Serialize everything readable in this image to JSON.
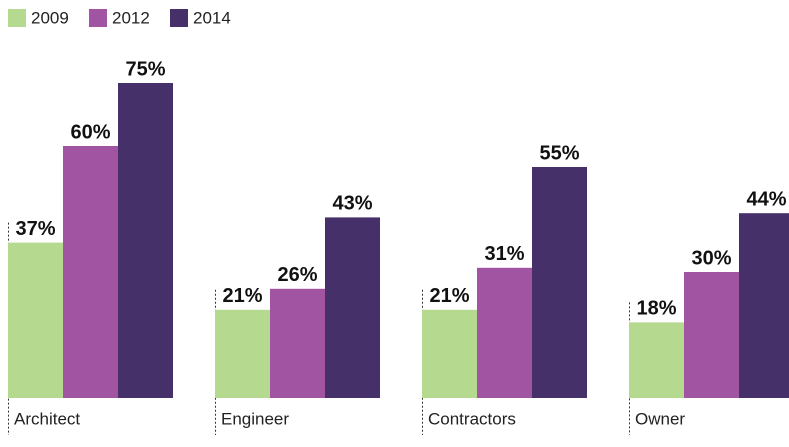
{
  "chart_data": {
    "type": "bar",
    "categories": [
      "Architect",
      "Engineer",
      "Contractors",
      "Owner"
    ],
    "series": [
      {
        "name": "2009",
        "color": "#b5d98f",
        "values": [
          37,
          21,
          21,
          18
        ],
        "value_labels": [
          "37%",
          "21%",
          "21%",
          "18%"
        ]
      },
      {
        "name": "2012",
        "color": "#a154a1",
        "values": [
          60,
          26,
          31,
          30
        ],
        "value_labels": [
          "60%",
          "26%",
          "31%",
          "30%"
        ]
      },
      {
        "name": "2014",
        "color": "#46306a",
        "values": [
          75,
          43,
          55,
          44
        ],
        "value_labels": [
          "75%",
          "43%",
          "55%",
          "44%"
        ]
      }
    ],
    "legend": "top-left"
  }
}
